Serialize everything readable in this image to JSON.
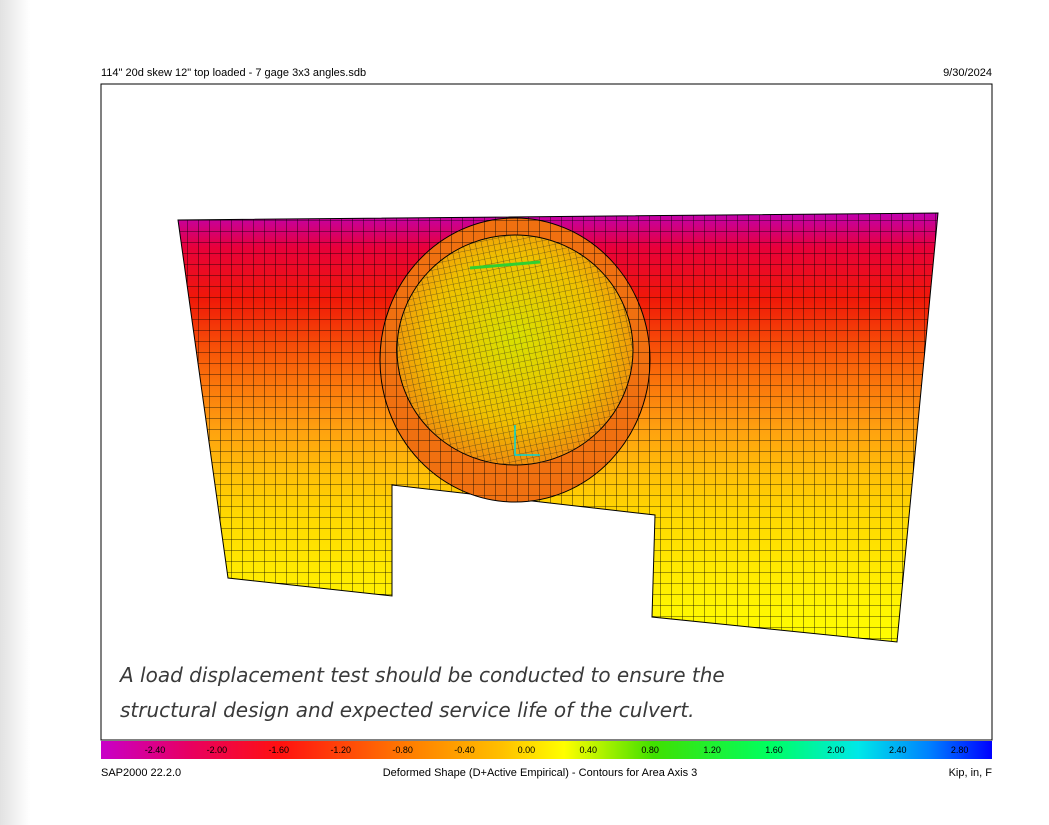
{
  "header": {
    "file": "114\" 20d skew 12\" top loaded - 7 gage 3x3 angles.sdb",
    "date": "9/30/2024"
  },
  "caption": {
    "lines": [
      "A load displacement test should be conducted to ensure the",
      "structural design and expected service life of the culvert."
    ]
  },
  "legend": {
    "labels": [
      "-2.40",
      "-2.00",
      "-1.60",
      "-1.20",
      "-0.80",
      "-0.40",
      "0.00",
      "0.40",
      "0.80",
      "1.20",
      "1.60",
      "2.00",
      "2.40",
      "2.80"
    ]
  },
  "footer": {
    "program": "SAP2000 22.2.0",
    "description": "Deformed Shape (D+Active Empirical) - Contours for Area Axis 3",
    "units": "Kip, in, F"
  }
}
